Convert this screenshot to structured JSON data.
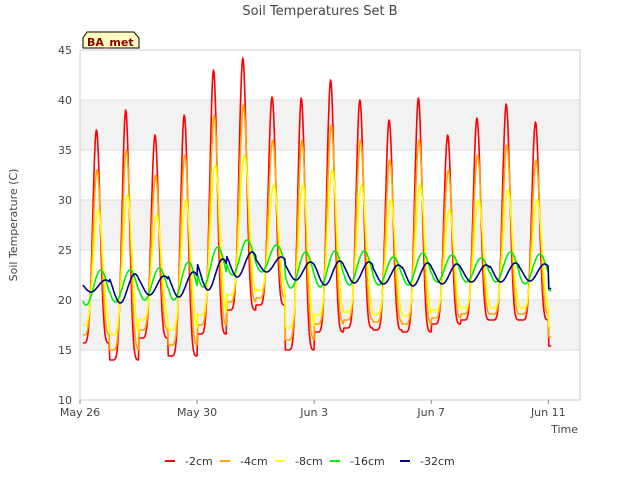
{
  "chart_data": {
    "type": "line",
    "title": "Soil Temperatures Set B",
    "xlabel": "Time",
    "ylabel": "Soil Temperature (C)",
    "ylim": [
      10,
      45
    ],
    "xlim": [
      "2017-05-26",
      "2017-06-12T02:00"
    ],
    "yticks": [
      10,
      15,
      20,
      25,
      30,
      35,
      40,
      45
    ],
    "xticks": [
      {
        "label": "May 26",
        "date": "2017-05-26"
      },
      {
        "label": "May 30",
        "date": "2017-05-30"
      },
      {
        "label": "Jun 3",
        "date": "2017-06-03"
      },
      {
        "label": "Jun 7",
        "date": "2017-06-07"
      },
      {
        "label": "Jun 11",
        "date": "2017-06-11"
      }
    ],
    "grid": true,
    "legend_position": "bottom",
    "site_label": "BA_met",
    "days": [
      "May 26",
      "May 27",
      "May 28",
      "May 29",
      "May 30",
      "May 31",
      "Jun 1",
      "Jun 2",
      "Jun 3",
      "Jun 4",
      "Jun 5",
      "Jun 6",
      "Jun 7",
      "Jun 8",
      "Jun 9",
      "Jun 10",
      "Jun 11"
    ],
    "series": [
      {
        "name": "-2cm",
        "color": "#ff0000",
        "daily_max": [
          37.0,
          39.0,
          36.5,
          38.5,
          43.0,
          44.2,
          40.3,
          40.2,
          42.0,
          40.0,
          38.0,
          40.2,
          36.5,
          38.2,
          39.6,
          37.8,
          24.0
        ],
        "daily_min": [
          15.7,
          14.0,
          16.2,
          14.4,
          16.6,
          19.0,
          19.5,
          15.0,
          16.8,
          17.2,
          17.0,
          16.8,
          17.6,
          18.0,
          18.0,
          18.0,
          15.4
        ]
      },
      {
        "name": "-4cm",
        "color": "#ffa500",
        "daily_max": [
          33.0,
          35.0,
          32.5,
          34.5,
          38.5,
          39.5,
          36.0,
          36.0,
          37.5,
          36.0,
          34.0,
          36.0,
          33.0,
          34.5,
          35.5,
          34.0,
          23.0
        ],
        "daily_min": [
          16.5,
          15.0,
          17.0,
          15.5,
          17.5,
          19.8,
          20.2,
          16.0,
          17.6,
          18.0,
          17.8,
          17.6,
          18.2,
          18.6,
          18.6,
          18.6,
          16.3
        ]
      },
      {
        "name": "-8cm",
        "color": "#ffff00",
        "daily_max": [
          29.0,
          30.5,
          28.5,
          30.0,
          33.5,
          34.5,
          31.5,
          31.5,
          33.0,
          31.5,
          30.0,
          31.5,
          29.0,
          30.0,
          31.0,
          30.0,
          22.0
        ],
        "daily_min": [
          17.5,
          16.5,
          18.0,
          17.0,
          18.5,
          20.5,
          21.0,
          17.2,
          18.5,
          18.8,
          18.6,
          18.4,
          19.0,
          19.2,
          19.2,
          19.2,
          17.3
        ]
      },
      {
        "name": "-16cm",
        "color": "#00ee00",
        "daily_max": [
          23.0,
          23.0,
          23.2,
          23.8,
          25.3,
          26.0,
          25.5,
          24.8,
          24.9,
          24.9,
          24.3,
          24.7,
          24.5,
          24.2,
          24.8,
          24.6,
          21.5
        ],
        "daily_min": [
          19.5,
          19.8,
          20.0,
          20.0,
          21.3,
          22.5,
          22.8,
          21.2,
          21.3,
          21.5,
          21.5,
          21.5,
          21.8,
          21.8,
          21.8,
          21.6,
          20.8
        ]
      },
      {
        "name": "-32cm",
        "color": "#00008b",
        "daily_max": [
          22.0,
          22.6,
          22.4,
          22.8,
          24.1,
          24.8,
          24.3,
          23.8,
          23.9,
          23.8,
          23.5,
          23.7,
          23.6,
          23.5,
          23.7,
          23.6,
          21.2
        ],
        "daily_min": [
          20.8,
          19.7,
          20.5,
          20.3,
          21.0,
          22.3,
          22.8,
          22.0,
          21.5,
          21.7,
          21.6,
          21.4,
          21.6,
          21.8,
          21.8,
          21.9,
          21.0
        ]
      }
    ]
  }
}
